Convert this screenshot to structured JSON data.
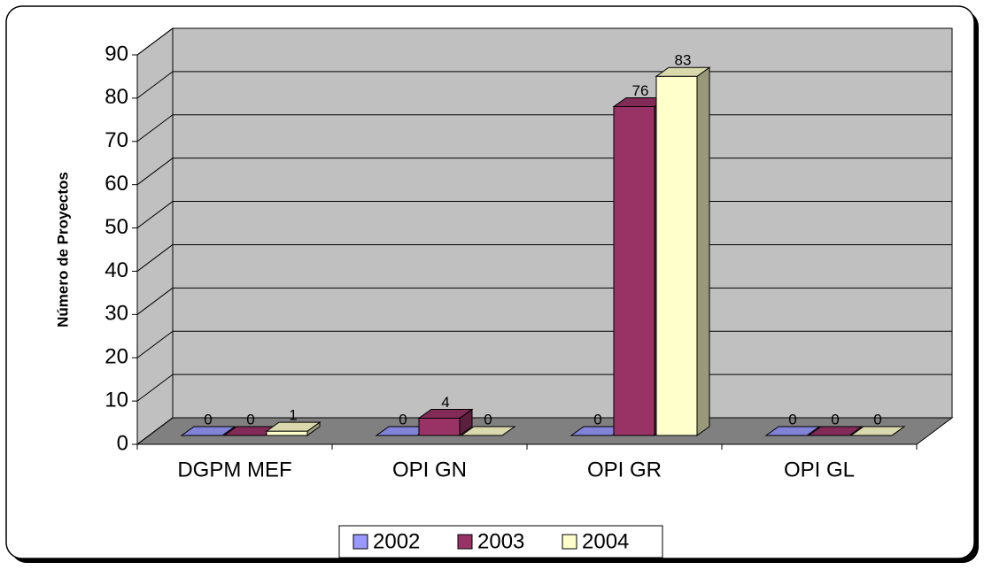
{
  "chart_data": {
    "type": "bar3d",
    "y_label": "Número de Proyectos",
    "categories": [
      "DGPM MEF",
      "OPI GN",
      "OPI GR",
      "OPI GL"
    ],
    "series": [
      {
        "name": "2002",
        "color": "#9999ff",
        "values": [
          0,
          0,
          0,
          0
        ]
      },
      {
        "name": "2003",
        "color": "#993366",
        "values": [
          0,
          4,
          76,
          0
        ]
      },
      {
        "name": "2004",
        "color": "#ffffcc",
        "values": [
          1,
          0,
          83,
          0
        ]
      }
    ],
    "ylim": [
      0,
      90
    ],
    "yticks": [
      0,
      10,
      20,
      30,
      40,
      50,
      60,
      70,
      80,
      90
    ],
    "grid": true,
    "legend": "bottom"
  }
}
